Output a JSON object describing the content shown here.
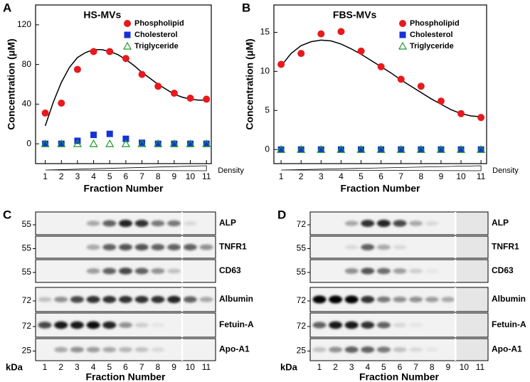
{
  "chart_data": [
    {
      "type": "scatter",
      "panel": "A",
      "title": "HS-MVs",
      "ylabel": "Concentration (μM)",
      "xlabel": "Fraction Number",
      "axis_note": "Density",
      "x": [
        1,
        2,
        3,
        4,
        5,
        6,
        7,
        8,
        9,
        10,
        11
      ],
      "xlim": [
        0.4,
        11.3
      ],
      "xticks": [
        1,
        2,
        3,
        4,
        5,
        6,
        7,
        8,
        9,
        10,
        11
      ],
      "ylim": [
        -20,
        140
      ],
      "yticks": [
        0,
        40,
        80,
        120
      ],
      "legend": "upper right",
      "series": [
        {
          "name": "Phospholipid",
          "color": "#e8191c",
          "marker": "circle",
          "values": [
            31,
            41,
            75,
            93,
            93,
            86,
            70,
            58,
            51,
            46,
            45
          ]
        },
        {
          "name": "Cholesterol",
          "color": "#1432d8",
          "marker": "square",
          "values": [
            0,
            0,
            3,
            9,
            10,
            5,
            1,
            0,
            0,
            0,
            0
          ]
        },
        {
          "name": "Triglyceride",
          "color": "#1a9a2a",
          "marker": "triangle",
          "values": [
            0,
            0,
            0,
            0,
            0,
            0,
            0,
            0,
            0,
            0,
            0
          ]
        }
      ],
      "fit": {
        "color": "#000000",
        "x": [
          1,
          1.5,
          2,
          2.5,
          3,
          3.5,
          4,
          4.5,
          5,
          5.5,
          6,
          6.5,
          7,
          7.5,
          8,
          8.5,
          9,
          9.5,
          10,
          10.5,
          11
        ],
        "values": [
          18,
          42,
          62,
          77,
          87,
          92,
          95,
          95,
          93,
          90,
          85,
          79,
          72,
          66,
          60,
          55,
          50,
          47,
          45,
          44,
          44
        ]
      }
    },
    {
      "type": "scatter",
      "panel": "B",
      "title": "FBS-MVs",
      "ylabel": "Concentration (μM)",
      "xlabel": "Fraction Number",
      "axis_note": "Density",
      "x": [
        1,
        2,
        3,
        4,
        5,
        6,
        7,
        8,
        9,
        10,
        11
      ],
      "xlim": [
        0.64,
        11.28
      ],
      "xticks": [
        1,
        2,
        3,
        4,
        5,
        6,
        7,
        8,
        9,
        10,
        11
      ],
      "ylim": [
        -1.8,
        18.5
      ],
      "yticks": [
        0,
        5,
        10,
        15
      ],
      "legend": "upper right",
      "series": [
        {
          "name": "Phospholipid",
          "color": "#e8191c",
          "marker": "circle",
          "values": [
            10.9,
            12.3,
            14.8,
            15.1,
            12.6,
            10.6,
            9.0,
            8.1,
            6.2,
            4.6,
            4.1
          ]
        },
        {
          "name": "Cholesterol",
          "color": "#1432d8",
          "marker": "square",
          "values": [
            0,
            0,
            0,
            0,
            0,
            0,
            0,
            0,
            0,
            0,
            0
          ]
        },
        {
          "name": "Triglyceride",
          "color": "#1a9a2a",
          "marker": "triangle",
          "values": [
            0,
            0,
            0,
            0,
            0,
            0,
            0,
            0,
            0,
            0,
            0
          ]
        }
      ],
      "fit": {
        "color": "#000000",
        "x": [
          1,
          1.5,
          2,
          2.5,
          3,
          3.5,
          4,
          4.5,
          5,
          5.5,
          6,
          6.5,
          7,
          7.5,
          8,
          8.5,
          9,
          9.5,
          10,
          10.5,
          11
        ],
        "values": [
          10.7,
          12.3,
          13.3,
          13.8,
          14.0,
          13.9,
          13.5,
          12.9,
          12.2,
          11.4,
          10.6,
          9.8,
          8.9,
          8.1,
          7.3,
          6.5,
          5.8,
          5.1,
          4.6,
          4.3,
          4.2
        ]
      }
    }
  ],
  "blots": [
    {
      "panel": "C",
      "unit": "kDa",
      "xlabel": "Fraction Number",
      "lanes": [
        1,
        2,
        3,
        4,
        5,
        6,
        7,
        8,
        9,
        10,
        11
      ],
      "rows": [
        {
          "protein": "ALP",
          "kda": 55,
          "bands": [
            0,
            0,
            0,
            0.3,
            0.6,
            0.85,
            0.8,
            0.5,
            0.5,
            0.1,
            0
          ]
        },
        {
          "protein": "TNFR1",
          "kda": 55,
          "bands": [
            0,
            0,
            0,
            0.3,
            0.6,
            0.65,
            0.65,
            0.6,
            0.6,
            0.6,
            0.4
          ]
        },
        {
          "protein": "CD63",
          "kda": 55,
          "bands": [
            0,
            0,
            0,
            0.35,
            0.6,
            0.7,
            0.6,
            0.4,
            0.2,
            0,
            0
          ]
        },
        {
          "protein": "Albumin",
          "kda": 72,
          "bands": [
            0.2,
            0.4,
            0.7,
            0.8,
            0.8,
            0.8,
            0.8,
            0.8,
            0.85,
            0.6,
            0.3
          ]
        },
        {
          "protein": "Fetuin-A",
          "kda": 72,
          "bands": [
            0.7,
            0.9,
            0.9,
            0.95,
            0.85,
            0.4,
            0.15,
            0.05,
            0,
            0,
            0
          ]
        },
        {
          "protein": "Apo-A1",
          "kda": 25,
          "bands": [
            0,
            0.3,
            0.4,
            0.35,
            0.3,
            0.25,
            0.2,
            0.1,
            0,
            0,
            0
          ]
        }
      ]
    },
    {
      "panel": "D",
      "unit": "kDa",
      "xlabel": "Fraction Number",
      "lanes": [
        1,
        2,
        3,
        4,
        5,
        6,
        7,
        8,
        9,
        10,
        11
      ],
      "rows": [
        {
          "protein": "ALP",
          "kda": 72,
          "bands": [
            0,
            0,
            0.3,
            0.8,
            0.85,
            0.7,
            0.3,
            0.1,
            0,
            0,
            0
          ]
        },
        {
          "protein": "TNFR1",
          "kda": 55,
          "bands": [
            0,
            0,
            0.1,
            0.6,
            0.3,
            0.1,
            0,
            0,
            0,
            0,
            0
          ]
        },
        {
          "protein": "CD63",
          "kda": 55,
          "bands": [
            0,
            0,
            0.4,
            0.65,
            0.55,
            0.35,
            0.15,
            0.05,
            0,
            0,
            0
          ]
        },
        {
          "protein": "Albumin",
          "kda": 72,
          "bands": [
            1,
            1,
            1,
            0.8,
            0.5,
            0.4,
            0.4,
            0.35,
            0.3,
            0,
            0
          ]
        },
        {
          "protein": "Fetuin-A",
          "kda": 72,
          "bands": [
            0.6,
            0.9,
            0.9,
            0.8,
            0.6,
            0.1,
            0.05,
            0,
            0,
            0,
            0
          ]
        },
        {
          "protein": "Apo-A1",
          "kda": 25,
          "bands": [
            0.2,
            0.4,
            0.6,
            0.6,
            0.5,
            0.2,
            0.1,
            0.05,
            0,
            0,
            0
          ]
        }
      ]
    }
  ]
}
